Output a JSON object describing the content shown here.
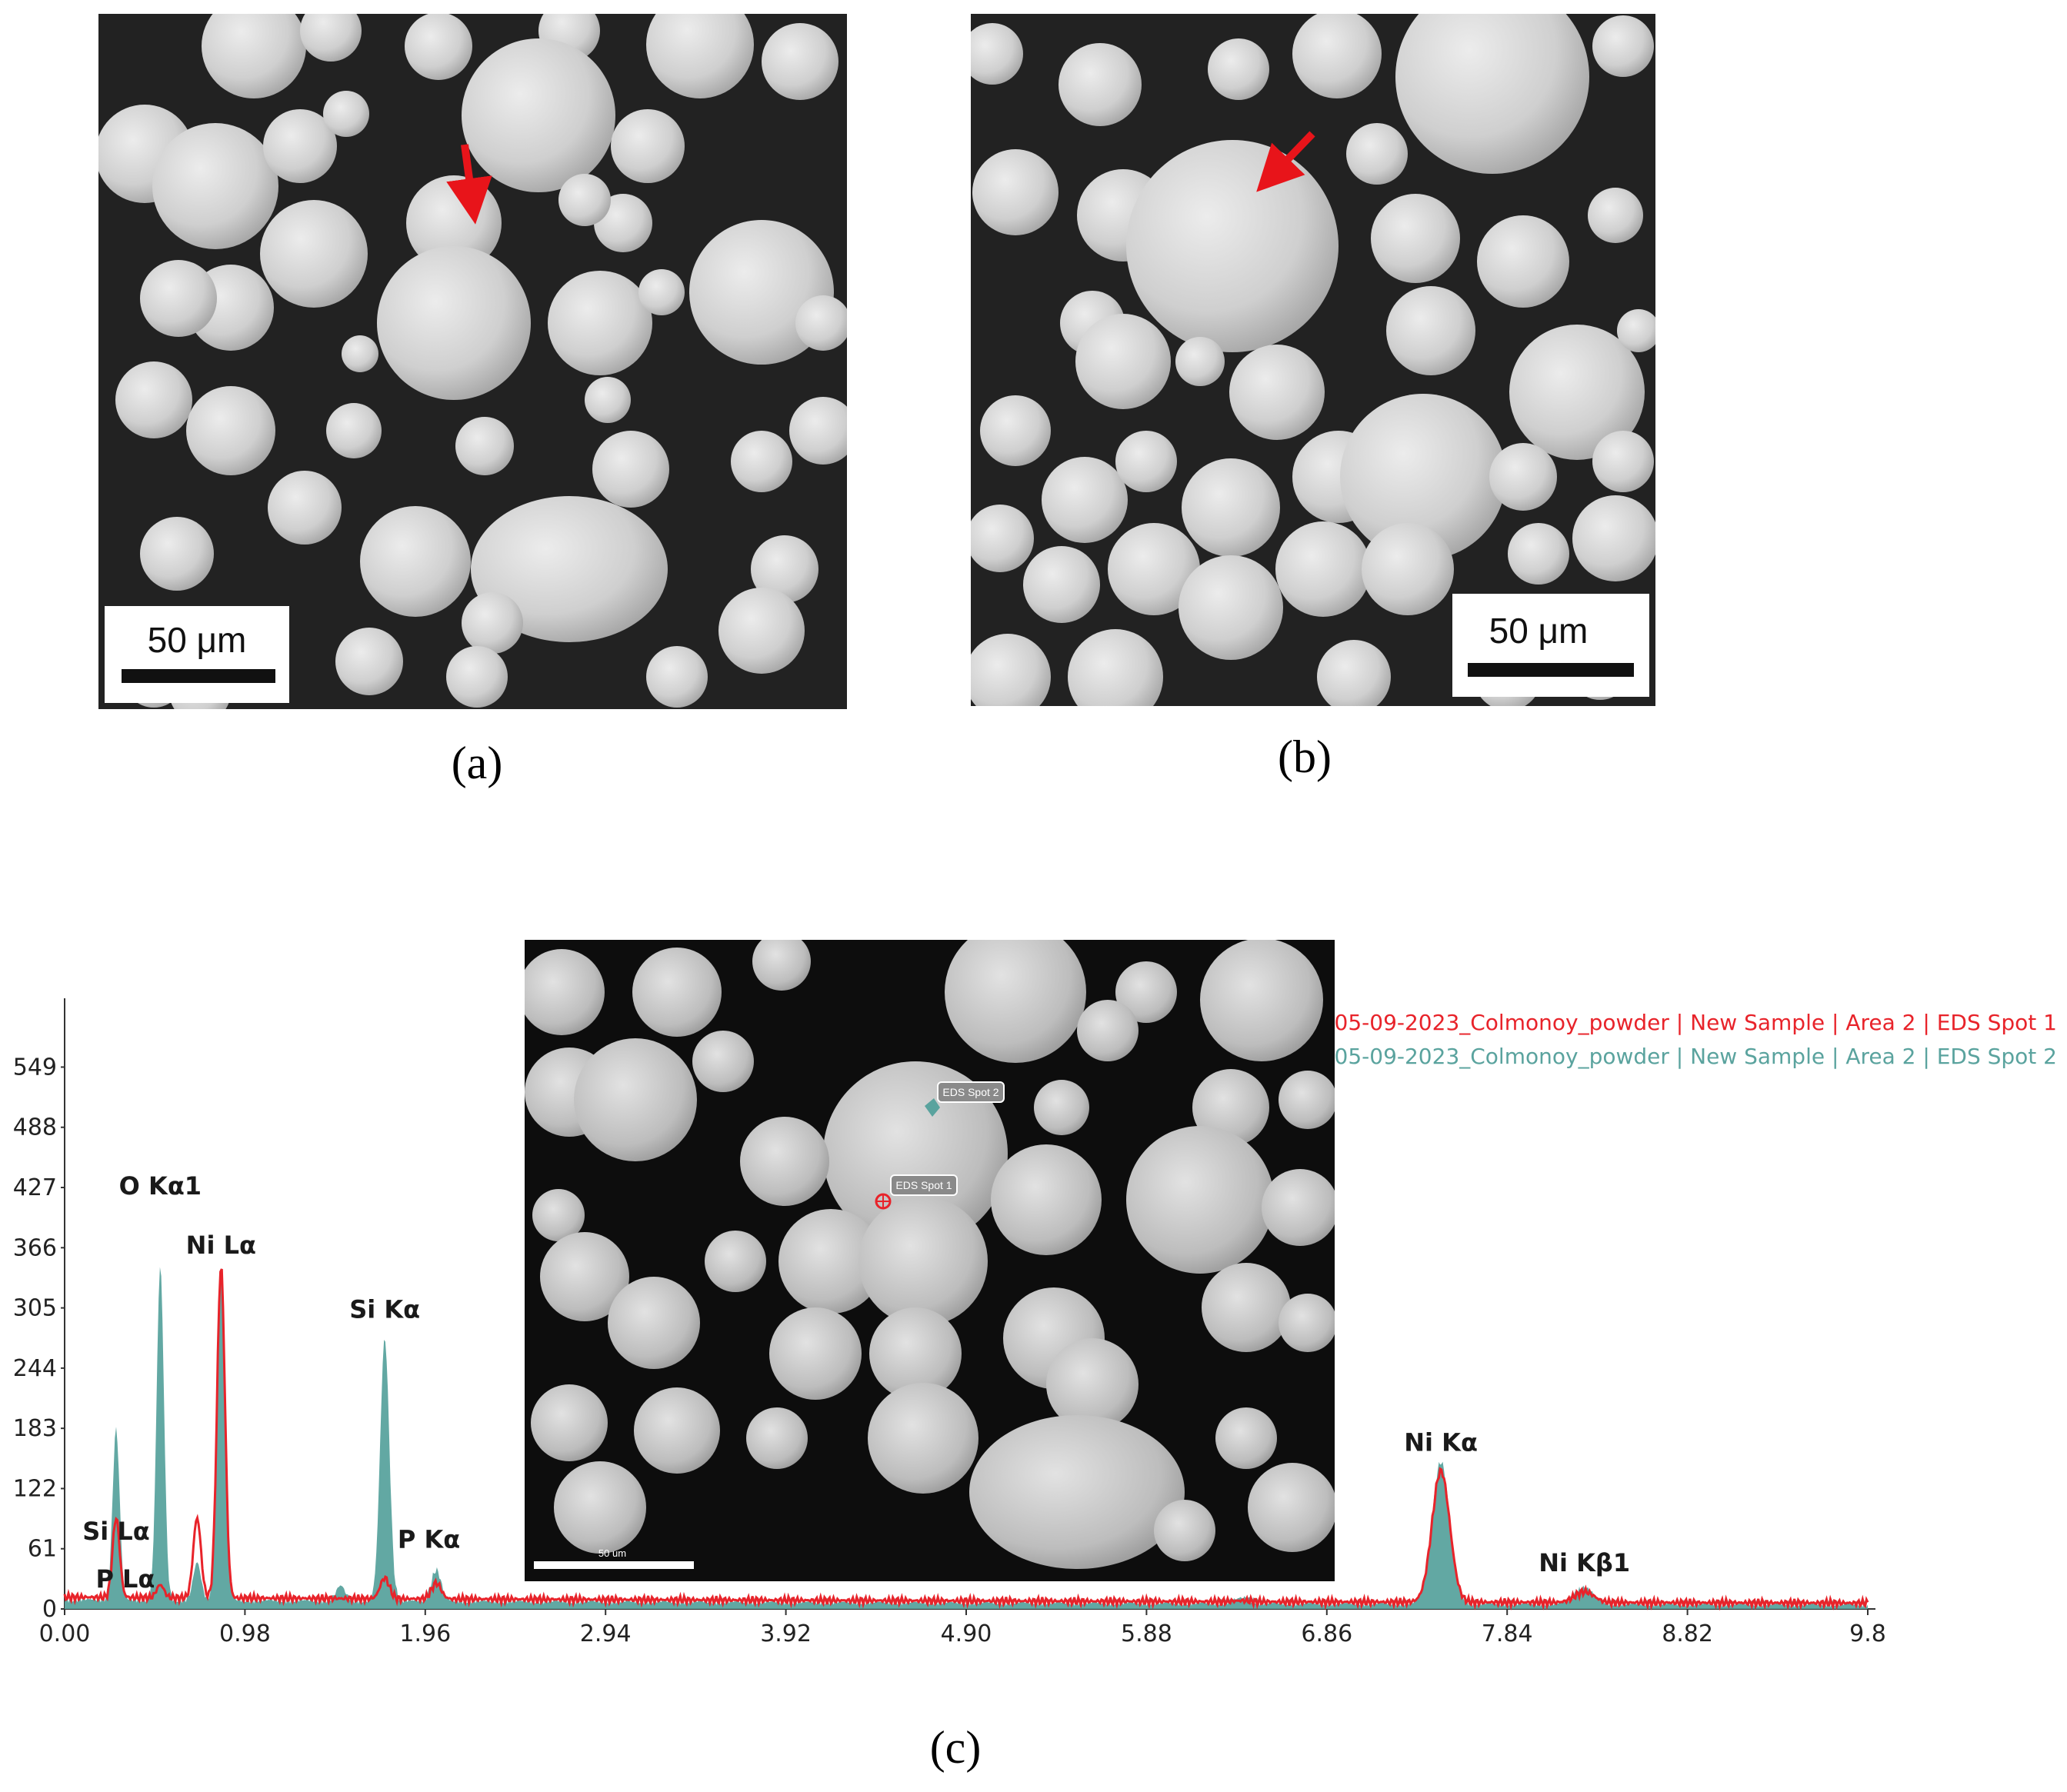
{
  "panels": {
    "a": {
      "caption": "(a)",
      "scale_bar_label": "50 μm"
    },
    "b": {
      "caption": "(b)",
      "scale_bar_label": "50 μm"
    },
    "c": {
      "caption": "(c)",
      "inset": {
        "spot1_label": "EDS Spot 1",
        "spot2_label": "EDS Spot 2",
        "scale_bar_label": "50 um"
      }
    }
  },
  "colors": {
    "spot1": "#e8232a",
    "spot2": "#5aa39e",
    "arrow": "#e8141a"
  },
  "chart_data": {
    "type": "area",
    "legend_placement": "top-right",
    "xlim": [
      0,
      9.8
    ],
    "ylim": [
      0,
      600
    ],
    "x_ticks": [
      "0.00",
      "0.98",
      "1.96",
      "2.94",
      "3.92",
      "4.90",
      "5.88",
      "6.86",
      "7.84",
      "8.82",
      "9.8"
    ],
    "y_ticks": [
      "0",
      "61",
      "122",
      "183",
      "244",
      "305",
      "366",
      "427",
      "488",
      "549"
    ],
    "peak_labels": [
      {
        "text": "O  Kα1",
        "x": 0.52,
        "y": 420
      },
      {
        "text": "Ni Lα",
        "x": 0.85,
        "y": 360
      },
      {
        "text": "Si Kα",
        "x": 1.74,
        "y": 295
      },
      {
        "text": "Si Lα",
        "x": 0.28,
        "y": 70
      },
      {
        "text": "P  Lα",
        "x": 0.33,
        "y": 22
      },
      {
        "text": "P  Kα",
        "x": 1.98,
        "y": 62
      },
      {
        "text": "Ni Kα",
        "x": 7.48,
        "y": 160
      },
      {
        "text": "Ni Kβ1",
        "x": 8.26,
        "y": 38
      }
    ],
    "series": [
      {
        "name": "05-09-2023_Colmonoy_powder | New Sample | Area 2 | EDS Spot 1",
        "color": "#e8232a",
        "baseline": 9,
        "peaks": [
          {
            "x": 0.28,
            "y": 90
          },
          {
            "x": 0.52,
            "y": 22
          },
          {
            "x": 0.72,
            "y": 90
          },
          {
            "x": 0.85,
            "y": 345
          },
          {
            "x": 1.74,
            "y": 30
          },
          {
            "x": 2.02,
            "y": 25
          },
          {
            "x": 6.4,
            "y": 10
          },
          {
            "x": 7.48,
            "y": 142
          },
          {
            "x": 8.26,
            "y": 20
          }
        ]
      },
      {
        "name": "05-09-2023_Colmonoy_powder | New Sample | Area 2 | EDS Spot 2",
        "color": "#5aa39e",
        "baseline": 7,
        "peaks": [
          {
            "x": 0.28,
            "y": 180
          },
          {
            "x": 0.52,
            "y": 345
          },
          {
            "x": 0.72,
            "y": 45
          },
          {
            "x": 0.85,
            "y": 340
          },
          {
            "x": 1.5,
            "y": 22
          },
          {
            "x": 1.74,
            "y": 272
          },
          {
            "x": 2.02,
            "y": 38
          },
          {
            "x": 6.4,
            "y": 12
          },
          {
            "x": 7.48,
            "y": 150
          },
          {
            "x": 8.26,
            "y": 22
          }
        ]
      }
    ]
  }
}
